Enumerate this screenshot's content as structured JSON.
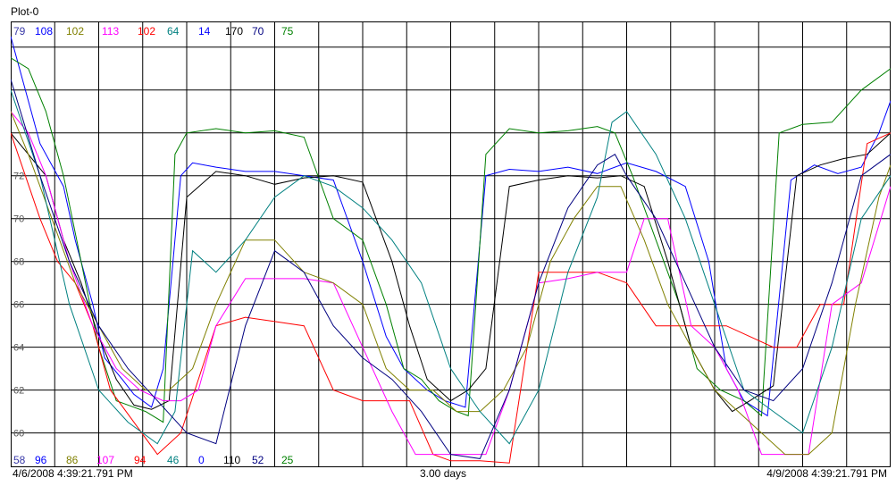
{
  "window": {
    "title": "Plot-0"
  },
  "footer": {
    "start_time": "4/6/2008 4:39:21.791 PM",
    "span": "3.00 days",
    "end_time": "4/9/2008 4:39:21.791 PM"
  },
  "chart_data": {
    "type": "line",
    "title": "Plot-0",
    "xlabel": "",
    "ylabel": "",
    "x_unit": "days",
    "xlim": [
      0,
      3
    ],
    "ylim": [
      58.4,
      79.2
    ],
    "y_ticks": [
      60,
      62,
      64,
      66,
      68,
      70,
      72
    ],
    "grid": true,
    "legend": "none",
    "scale_top": [
      {
        "value": "79",
        "color": "#3a3aa8"
      },
      {
        "value": "108",
        "color": "#0000ff"
      },
      {
        "value": "102",
        "color": "#808000"
      },
      {
        "value": "113",
        "color": "#ff00ff"
      },
      {
        "value": "102",
        "color": "#ff0000"
      },
      {
        "value": "64",
        "color": "#008080"
      },
      {
        "value": "14",
        "color": "#0000ff"
      },
      {
        "value": "170",
        "color": "#000000"
      },
      {
        "value": "70",
        "color": "#000080"
      },
      {
        "value": "75",
        "color": "#008000"
      }
    ],
    "scale_bottom": [
      {
        "value": "58",
        "color": "#3a3aa8"
      },
      {
        "value": "96",
        "color": "#0000ff"
      },
      {
        "value": "86",
        "color": "#808000"
      },
      {
        "value": "107",
        "color": "#ff00ff"
      },
      {
        "value": "94",
        "color": "#ff0000"
      },
      {
        "value": "46",
        "color": "#008080"
      },
      {
        "value": "0",
        "color": "#0000ff"
      },
      {
        "value": "110",
        "color": "#000000"
      },
      {
        "value": "52",
        "color": "#000080"
      },
      {
        "value": "25",
        "color": "#008000"
      }
    ],
    "series": [
      {
        "color": "#0000ff",
        "x": [
          0,
          0.05,
          0.1,
          0.18,
          0.22,
          0.28,
          0.32,
          0.38,
          0.42,
          0.48,
          0.52,
          0.58,
          0.62,
          0.7,
          0.8,
          0.9,
          1.0,
          1.1,
          1.2,
          1.28,
          1.34,
          1.42,
          1.48,
          1.55,
          1.62,
          1.7,
          1.8,
          1.9,
          2.0,
          2.1,
          2.2,
          2.3,
          2.38,
          2.44,
          2.5,
          2.58,
          2.66,
          2.74,
          2.82,
          2.9,
          2.96,
          3.0
        ],
        "y": [
          78.5,
          76,
          73.5,
          71.5,
          69,
          66,
          63.5,
          62.5,
          61.8,
          61.2,
          63,
          72,
          72.6,
          72.4,
          72.2,
          72.2,
          72,
          71.8,
          68,
          64.5,
          63,
          62,
          61.5,
          61.2,
          72,
          72.3,
          72.2,
          72.4,
          72.1,
          72.6,
          72.2,
          71.5,
          68,
          63,
          61.5,
          60.8,
          71.8,
          72.5,
          72.1,
          72.4,
          74,
          75.5
        ]
      },
      {
        "color": "#008000",
        "x": [
          0,
          0.06,
          0.12,
          0.18,
          0.24,
          0.3,
          0.36,
          0.42,
          0.46,
          0.52,
          0.56,
          0.6,
          0.7,
          0.8,
          0.9,
          1.0,
          1.1,
          1.2,
          1.28,
          1.34,
          1.4,
          1.46,
          1.52,
          1.56,
          1.62,
          1.7,
          1.8,
          1.9,
          2.0,
          2.06,
          2.12,
          2.2,
          2.28,
          2.34,
          2.42,
          2.5,
          2.56,
          2.62,
          2.7,
          2.8,
          2.9,
          3.0
        ],
        "y": [
          77.5,
          77,
          75,
          72,
          68,
          64,
          61.5,
          61.2,
          61,
          60.5,
          73,
          74,
          74.2,
          74,
          74.1,
          73.8,
          70,
          69,
          66,
          63,
          62.5,
          61.5,
          61,
          60.8,
          73,
          74.2,
          74,
          74.1,
          74.3,
          74,
          72,
          69,
          66,
          63,
          62,
          61.5,
          60.8,
          74,
          74.4,
          74.5,
          76,
          77
        ]
      },
      {
        "color": "#000000",
        "x": [
          0,
          0.06,
          0.12,
          0.18,
          0.24,
          0.3,
          0.36,
          0.42,
          0.48,
          0.54,
          0.6,
          0.7,
          0.8,
          0.9,
          1.0,
          1.1,
          1.2,
          1.3,
          1.36,
          1.42,
          1.5,
          1.56,
          1.62,
          1.7,
          1.8,
          1.9,
          2.0,
          2.08,
          2.16,
          2.24,
          2.32,
          2.4,
          2.46,
          2.52,
          2.6,
          2.68,
          2.76,
          2.84,
          2.92,
          3.0
        ],
        "y": [
          74,
          73,
          72,
          69,
          67,
          64.5,
          62.5,
          61.3,
          61.1,
          61.5,
          71,
          72.2,
          72,
          71.6,
          71.9,
          72,
          71.7,
          68,
          65,
          62.5,
          61.5,
          62,
          63,
          71.5,
          71.8,
          72,
          71.9,
          72,
          71.5,
          68,
          64,
          62,
          61,
          61.5,
          62.2,
          72,
          72.5,
          72.8,
          73,
          74
        ]
      },
      {
        "color": "#ff0000",
        "x": [
          0,
          0.05,
          0.1,
          0.16,
          0.22,
          0.28,
          0.34,
          0.42,
          0.5,
          0.58,
          0.7,
          0.8,
          0.9,
          1.0,
          1.1,
          1.2,
          1.3,
          1.36,
          1.44,
          1.5,
          1.6,
          1.7,
          1.8,
          1.9,
          2.0,
          2.1,
          2.2,
          2.3,
          2.36,
          2.44,
          2.52,
          2.6,
          2.68,
          2.76,
          2.84,
          2.92,
          3.0
        ],
        "y": [
          74,
          72,
          70,
          68,
          67,
          65,
          62,
          60.5,
          59,
          60,
          65,
          65.4,
          65.2,
          65,
          62,
          61.5,
          61.5,
          61.5,
          59,
          58.7,
          58.7,
          58.6,
          67.5,
          67.5,
          67.5,
          67,
          65,
          65,
          65,
          65,
          64.5,
          64,
          64,
          66,
          66,
          73.5,
          74
        ]
      },
      {
        "color": "#ff00ff",
        "x": [
          0,
          0.06,
          0.12,
          0.2,
          0.28,
          0.36,
          0.44,
          0.52,
          0.58,
          0.64,
          0.7,
          0.8,
          0.9,
          1.0,
          1.1,
          1.2,
          1.3,
          1.38,
          1.46,
          1.54,
          1.62,
          1.7,
          1.8,
          1.9,
          2.0,
          2.1,
          2.16,
          2.24,
          2.32,
          2.4,
          2.48,
          2.56,
          2.64,
          2.72,
          2.8,
          2.9,
          3.0
        ],
        "y": [
          75,
          74,
          72,
          68,
          65,
          63,
          62,
          61.5,
          61.5,
          62,
          65,
          67.2,
          67.2,
          67.2,
          67,
          64,
          61,
          59,
          59,
          59,
          59,
          62,
          67,
          67.2,
          67.5,
          67.5,
          70,
          70,
          65,
          64,
          62,
          59,
          59,
          59,
          66,
          67,
          71.5
        ]
      },
      {
        "color": "#808000",
        "x": [
          0,
          0.06,
          0.14,
          0.22,
          0.3,
          0.38,
          0.46,
          0.54,
          0.62,
          0.7,
          0.8,
          0.9,
          1.0,
          1.1,
          1.2,
          1.28,
          1.36,
          1.44,
          1.52,
          1.6,
          1.68,
          1.76,
          1.84,
          1.92,
          2.0,
          2.08,
          2.16,
          2.24,
          2.32,
          2.4,
          2.48,
          2.56,
          2.64,
          2.72,
          2.8,
          2.88,
          2.96,
          3.0
        ],
        "y": [
          75,
          73,
          70,
          67,
          65,
          63,
          62,
          62,
          63,
          66,
          69,
          69,
          67.5,
          67,
          66,
          63,
          62,
          62,
          61,
          61,
          62,
          64,
          68,
          70,
          71.5,
          71.5,
          69,
          66,
          64,
          62,
          61,
          60,
          59,
          59,
          60,
          66,
          71,
          72.5
        ]
      },
      {
        "color": "#008080",
        "x": [
          0,
          0.1,
          0.2,
          0.3,
          0.4,
          0.5,
          0.56,
          0.62,
          0.7,
          0.8,
          0.9,
          1.0,
          1.1,
          1.2,
          1.3,
          1.4,
          1.5,
          1.6,
          1.7,
          1.8,
          1.9,
          2.0,
          2.05,
          2.1,
          2.2,
          2.3,
          2.4,
          2.5,
          2.6,
          2.7,
          2.8,
          2.9,
          3.0
        ],
        "y": [
          76,
          72,
          66,
          62,
          60.5,
          59.5,
          61,
          68.5,
          67.5,
          69,
          71,
          72,
          71.5,
          70.5,
          69,
          67,
          63,
          61,
          59.5,
          62,
          67.5,
          71,
          74.5,
          75,
          73,
          70,
          66,
          62,
          61,
          60,
          64,
          70,
          72
        ]
      },
      {
        "color": "#000080",
        "x": [
          0,
          0.1,
          0.2,
          0.3,
          0.4,
          0.5,
          0.6,
          0.7,
          0.8,
          0.9,
          1.0,
          1.1,
          1.2,
          1.3,
          1.4,
          1.5,
          1.6,
          1.7,
          1.8,
          1.9,
          2.0,
          2.06,
          2.1,
          2.2,
          2.3,
          2.4,
          2.5,
          2.6,
          2.7,
          2.8,
          2.9,
          3.0
        ],
        "y": [
          76.5,
          72,
          68,
          65,
          63,
          61.5,
          60,
          59.5,
          65,
          68.5,
          67.5,
          65,
          63.5,
          62.5,
          61,
          59,
          58.8,
          62,
          67,
          70.5,
          72.5,
          73,
          72,
          70,
          67,
          64,
          62,
          61.5,
          63,
          67,
          72,
          73
        ]
      }
    ]
  }
}
